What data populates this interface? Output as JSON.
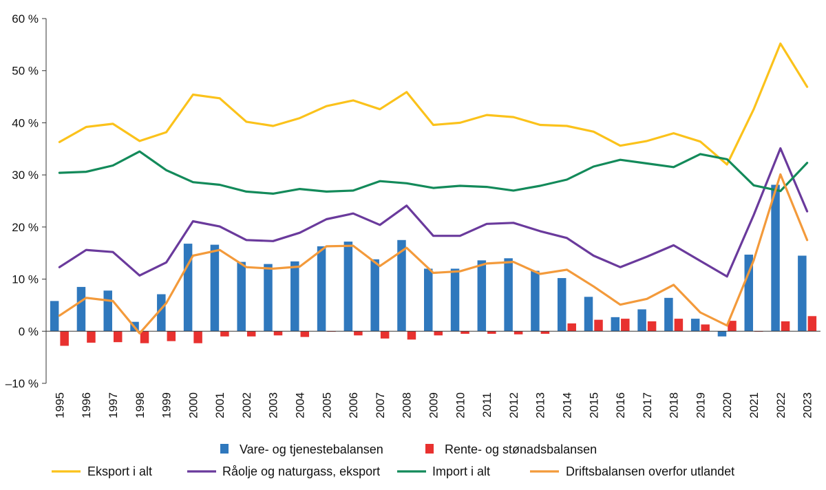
{
  "chart_data": {
    "type": "bar",
    "title": "",
    "xlabel": "",
    "ylabel": "",
    "ylim": [
      -10,
      60
    ],
    "ytick_values": [
      -10,
      0,
      10,
      20,
      30,
      40,
      50,
      60
    ],
    "ytick_labels": [
      "–10 %",
      "0 %",
      "10 %",
      "20 %",
      "30 %",
      "40 %",
      "50 %",
      "60 %"
    ],
    "categories": [
      "1995",
      "1996",
      "1997",
      "1998",
      "1999",
      "2000",
      "2001",
      "2002",
      "2003",
      "2004",
      "2005",
      "2006",
      "2007",
      "2008",
      "2009",
      "2010",
      "2011",
      "2012",
      "2013",
      "2014",
      "2015",
      "2016",
      "2017",
      "2018",
      "2019",
      "2020",
      "2021",
      "2022",
      "2023"
    ],
    "bar_series": [
      {
        "name": "Vare- og tjenestebalansen",
        "color": "#2f78bd",
        "values": [
          5.8,
          8.5,
          7.8,
          1.8,
          7.1,
          16.8,
          16.6,
          13.3,
          12.9,
          13.4,
          16.3,
          17.2,
          13.8,
          17.5,
          12.0,
          12.0,
          13.6,
          14.0,
          11.6,
          10.2,
          6.6,
          2.7,
          4.2,
          6.4,
          2.4,
          -1.0,
          14.7,
          28.1,
          14.5
        ]
      },
      {
        "name": "Rente- og stønadsbalansen",
        "color": "#e8312f",
        "values": [
          -2.8,
          -2.2,
          -2.1,
          -2.3,
          -1.9,
          -2.3,
          -1.0,
          -1.0,
          -0.8,
          -1.1,
          -0.1,
          -0.8,
          -1.4,
          -1.6,
          -0.8,
          -0.5,
          -0.5,
          -0.6,
          -0.5,
          1.5,
          2.2,
          2.4,
          1.9,
          2.4,
          1.3,
          2.0,
          -0.1,
          1.9,
          2.9
        ]
      }
    ],
    "line_series": [
      {
        "name": "Eksport i alt",
        "color": "#fbc21b",
        "values": [
          36.3,
          39.2,
          39.8,
          36.5,
          38.2,
          45.4,
          44.7,
          40.2,
          39.4,
          40.9,
          43.2,
          44.3,
          42.6,
          45.9,
          39.6,
          40.0,
          41.5,
          41.1,
          39.6,
          39.4,
          38.3,
          35.6,
          36.5,
          38.0,
          36.4,
          32.0,
          42.6,
          55.2,
          46.9
        ]
      },
      {
        "name": "Råolje og naturgass, eksport",
        "color": "#6a3a9c",
        "values": [
          12.3,
          15.6,
          15.2,
          10.7,
          13.2,
          21.1,
          20.1,
          17.5,
          17.3,
          18.9,
          21.5,
          22.6,
          20.4,
          24.1,
          18.3,
          18.3,
          20.6,
          20.8,
          19.2,
          17.9,
          14.5,
          12.3,
          14.3,
          16.5,
          13.5,
          10.5,
          22.3,
          35.1,
          23.0
        ]
      },
      {
        "name": "Import i alt",
        "color": "#138a5a",
        "values": [
          30.4,
          30.6,
          31.8,
          34.5,
          30.9,
          28.6,
          28.1,
          26.8,
          26.4,
          27.3,
          26.8,
          27.0,
          28.8,
          28.4,
          27.5,
          27.9,
          27.7,
          27.0,
          27.9,
          29.1,
          31.6,
          32.9,
          32.2,
          31.5,
          34.0,
          33.0,
          28.0,
          26.9,
          32.3
        ]
      },
      {
        "name": "Driftsbalansen overfor utlandet",
        "color": "#f39a3b",
        "values": [
          3.0,
          6.4,
          5.8,
          -0.4,
          5.4,
          14.5,
          15.6,
          12.3,
          12.0,
          12.4,
          16.3,
          16.4,
          12.5,
          16.0,
          11.2,
          11.5,
          13.0,
          13.3,
          11.0,
          11.8,
          8.6,
          5.1,
          6.2,
          8.9,
          3.6,
          1.1,
          13.6,
          30.1,
          17.5
        ]
      }
    ],
    "legend_position": "bottom",
    "grid": false
  }
}
